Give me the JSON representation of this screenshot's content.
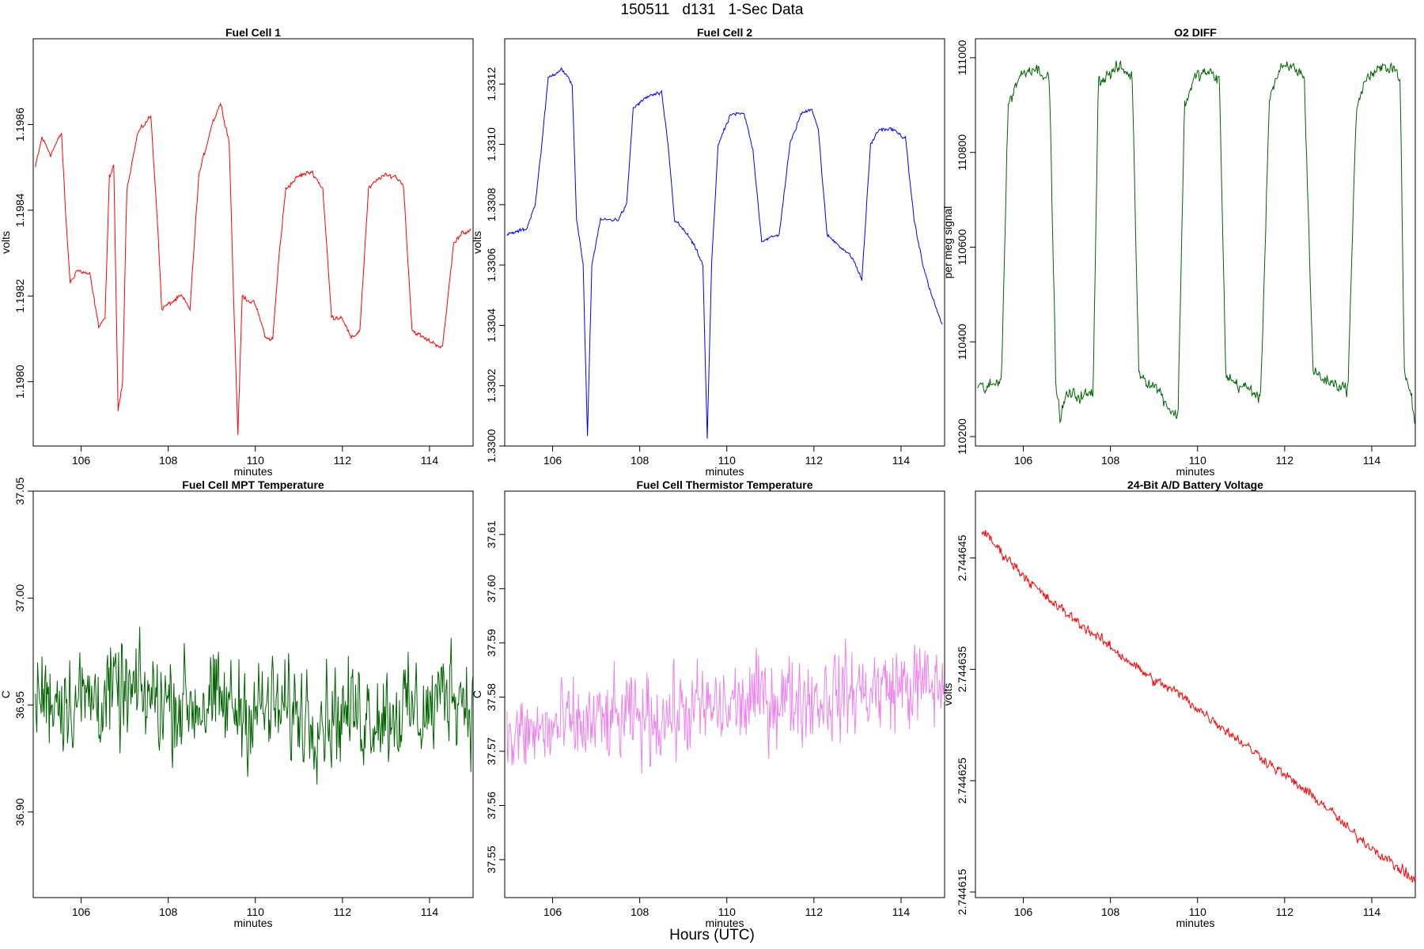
{
  "page": {
    "title": "150511   d131   1-Sec Data",
    "x_caption": "Hours (UTC)"
  },
  "chart_data": [
    {
      "type": "line",
      "title": "Fuel Cell 1",
      "xlabel": "minutes",
      "ylabel": "volts",
      "color": "#ff0000",
      "xlim": [
        104.9,
        115.0
      ],
      "ylim": [
        1.19785,
        1.1988
      ],
      "xticks": [
        106,
        108,
        110,
        112,
        114
      ],
      "yticks": [
        1.198,
        1.1982,
        1.1984,
        1.1986
      ],
      "ytick_labels": [
        "1.1980",
        "1.1982",
        "1.1984",
        "1.1986"
      ],
      "keypoints": [
        [
          104.95,
          1.1985
        ],
        [
          105.1,
          1.19857
        ],
        [
          105.3,
          1.19853
        ],
        [
          105.55,
          1.19858
        ],
        [
          105.65,
          1.19838
        ],
        [
          105.75,
          1.19823
        ],
        [
          105.9,
          1.19826
        ],
        [
          106.2,
          1.19825
        ],
        [
          106.4,
          1.19813
        ],
        [
          106.55,
          1.19815
        ],
        [
          106.65,
          1.19848
        ],
        [
          106.75,
          1.1985
        ],
        [
          106.85,
          1.19793
        ],
        [
          106.95,
          1.198
        ],
        [
          107.05,
          1.19845
        ],
        [
          107.3,
          1.19858
        ],
        [
          107.6,
          1.19862
        ],
        [
          107.75,
          1.19838
        ],
        [
          107.85,
          1.19817
        ],
        [
          108.0,
          1.19818
        ],
        [
          108.3,
          1.1982
        ],
        [
          108.5,
          1.19817
        ],
        [
          108.7,
          1.19848
        ],
        [
          109.0,
          1.1986
        ],
        [
          109.2,
          1.19865
        ],
        [
          109.4,
          1.19856
        ],
        [
          109.5,
          1.1982
        ],
        [
          109.6,
          1.19788
        ],
        [
          109.7,
          1.1982
        ],
        [
          110.0,
          1.19818
        ],
        [
          110.25,
          1.1981
        ],
        [
          110.4,
          1.1981
        ],
        [
          110.55,
          1.1983
        ],
        [
          110.7,
          1.19845
        ],
        [
          111.0,
          1.19848
        ],
        [
          111.3,
          1.19849
        ],
        [
          111.55,
          1.19845
        ],
        [
          111.75,
          1.19815
        ],
        [
          112.0,
          1.19815
        ],
        [
          112.2,
          1.1981
        ],
        [
          112.4,
          1.19812
        ],
        [
          112.6,
          1.19845
        ],
        [
          112.9,
          1.19848
        ],
        [
          113.2,
          1.19848
        ],
        [
          113.4,
          1.19846
        ],
        [
          113.6,
          1.19812
        ],
        [
          113.9,
          1.1981
        ],
        [
          114.3,
          1.19808
        ],
        [
          114.55,
          1.19832
        ],
        [
          114.75,
          1.19835
        ],
        [
          114.95,
          1.19835
        ]
      ],
      "noise": 6.5e-06
    },
    {
      "type": "line",
      "title": "Fuel Cell 2",
      "xlabel": "minutes",
      "ylabel": "volts",
      "color": "#0000ff",
      "xlim": [
        104.9,
        115.0
      ],
      "ylim": [
        1.33,
        1.33135
      ],
      "xticks": [
        106,
        108,
        110,
        112,
        114
      ],
      "yticks": [
        1.33,
        1.3302,
        1.3304,
        1.3306,
        1.3308,
        1.331,
        1.3312
      ],
      "ytick_labels": [
        "1.3300",
        "1.3302",
        "1.3304",
        "1.3306",
        "1.3308",
        "1.3310",
        "1.3312"
      ],
      "keypoints": [
        [
          104.95,
          1.3307
        ],
        [
          105.4,
          1.33072
        ],
        [
          105.6,
          1.3308
        ],
        [
          105.75,
          1.331
        ],
        [
          105.9,
          1.33122
        ],
        [
          106.2,
          1.33125
        ],
        [
          106.45,
          1.3312
        ],
        [
          106.55,
          1.33075
        ],
        [
          106.7,
          1.3306
        ],
        [
          106.8,
          1.33003
        ],
        [
          106.9,
          1.3306
        ],
        [
          107.1,
          1.33075
        ],
        [
          107.5,
          1.33075
        ],
        [
          107.7,
          1.3308
        ],
        [
          107.85,
          1.33112
        ],
        [
          108.2,
          1.33116
        ],
        [
          108.5,
          1.33117
        ],
        [
          108.65,
          1.331
        ],
        [
          108.8,
          1.33075
        ],
        [
          109.1,
          1.3307
        ],
        [
          109.3,
          1.33065
        ],
        [
          109.45,
          1.3306
        ],
        [
          109.55,
          1.33002
        ],
        [
          109.65,
          1.3306
        ],
        [
          109.8,
          1.331
        ],
        [
          110.1,
          1.3311
        ],
        [
          110.4,
          1.3311
        ],
        [
          110.6,
          1.33098
        ],
        [
          110.8,
          1.33068
        ],
        [
          111.2,
          1.3307
        ],
        [
          111.45,
          1.331
        ],
        [
          111.7,
          1.3311
        ],
        [
          111.95,
          1.33112
        ],
        [
          112.1,
          1.33105
        ],
        [
          112.3,
          1.3307
        ],
        [
          112.7,
          1.33065
        ],
        [
          112.9,
          1.33062
        ],
        [
          113.1,
          1.33055
        ],
        [
          113.3,
          1.331
        ],
        [
          113.5,
          1.33105
        ],
        [
          113.8,
          1.33105
        ],
        [
          114.1,
          1.33102
        ],
        [
          114.3,
          1.33075
        ],
        [
          114.5,
          1.3306
        ],
        [
          114.7,
          1.3305
        ],
        [
          114.95,
          1.3304
        ]
      ],
      "noise": 7.5e-06
    },
    {
      "type": "line",
      "title": "O2 DIFF",
      "xlabel": "minutes",
      "ylabel": "per meg signal",
      "color": "#006400",
      "xlim": [
        104.9,
        115.0
      ],
      "ylim": [
        110180,
        111040
      ],
      "xticks": [
        106,
        108,
        110,
        112,
        114
      ],
      "yticks": [
        110200,
        110400,
        110600,
        110800,
        111000
      ],
      "ytick_labels": [
        "110200",
        "110400",
        "110600",
        "110800",
        "111000"
      ],
      "keypoints": [
        [
          104.95,
          110310
        ],
        [
          105.1,
          110300
        ],
        [
          105.35,
          110310
        ],
        [
          105.5,
          110330
        ],
        [
          105.65,
          110900
        ],
        [
          105.9,
          110960
        ],
        [
          106.2,
          110980
        ],
        [
          106.45,
          110970
        ],
        [
          106.6,
          110950
        ],
        [
          106.75,
          110300
        ],
        [
          106.85,
          110240
        ],
        [
          107.0,
          110290
        ],
        [
          107.3,
          110285
        ],
        [
          107.6,
          110290
        ],
        [
          107.72,
          110950
        ],
        [
          107.9,
          110960
        ],
        [
          108.2,
          110980
        ],
        [
          108.5,
          110960
        ],
        [
          108.65,
          110340
        ],
        [
          108.8,
          110320
        ],
        [
          109.1,
          110300
        ],
        [
          109.35,
          110260
        ],
        [
          109.55,
          110240
        ],
        [
          109.7,
          110900
        ],
        [
          109.95,
          110960
        ],
        [
          110.2,
          110970
        ],
        [
          110.5,
          110955
        ],
        [
          110.65,
          110330
        ],
        [
          110.9,
          110310
        ],
        [
          111.2,
          110300
        ],
        [
          111.45,
          110280
        ],
        [
          111.65,
          110920
        ],
        [
          111.9,
          110975
        ],
        [
          112.2,
          110980
        ],
        [
          112.45,
          110960
        ],
        [
          112.65,
          110340
        ],
        [
          112.9,
          110320
        ],
        [
          113.2,
          110310
        ],
        [
          113.45,
          110300
        ],
        [
          113.65,
          110900
        ],
        [
          113.9,
          110960
        ],
        [
          114.2,
          110975
        ],
        [
          114.45,
          110985
        ],
        [
          114.65,
          110960
        ],
        [
          114.75,
          110330
        ],
        [
          114.9,
          110290
        ],
        [
          115.0,
          110220
        ]
      ],
      "noise": 16
    },
    {
      "type": "line",
      "title": "Fuel Cell MPT Temperature",
      "xlabel": "minutes",
      "ylabel": "C",
      "color": "#006400",
      "xlim": [
        104.9,
        115.0
      ],
      "ylim": [
        36.86,
        37.05
      ],
      "xticks": [
        106,
        108,
        110,
        112,
        114
      ],
      "yticks": [
        36.9,
        36.95,
        37.0,
        37.05
      ],
      "ytick_labels": [
        "36.90",
        "36.95",
        "37.00",
        "37.05"
      ],
      "keypoints": [
        [
          104.95,
          36.955
        ],
        [
          106,
          36.953
        ],
        [
          107,
          36.955
        ],
        [
          108,
          36.952
        ],
        [
          109,
          36.95
        ],
        [
          110,
          36.948
        ],
        [
          111,
          36.947
        ],
        [
          112,
          36.946
        ],
        [
          113,
          36.947
        ],
        [
          114,
          36.947
        ],
        [
          114.5,
          36.96
        ],
        [
          115.0,
          36.95
        ]
      ],
      "noise": 0.028
    },
    {
      "type": "line",
      "title": "Fuel Cell Thermistor Temperature",
      "xlabel": "minutes",
      "ylabel": "C",
      "color": "#ee82ee",
      "xlim": [
        104.9,
        115.0
      ],
      "ylim": [
        37.543,
        37.618
      ],
      "xticks": [
        106,
        108,
        110,
        112,
        114
      ],
      "yticks": [
        37.55,
        37.56,
        37.57,
        37.58,
        37.59,
        37.6,
        37.61
      ],
      "ytick_labels": [
        "37.55",
        "37.56",
        "37.57",
        "37.58",
        "37.59",
        "37.60",
        "37.61"
      ],
      "keypoints": [
        [
          104.95,
          37.572
        ],
        [
          106,
          37.574
        ],
        [
          107,
          37.575
        ],
        [
          108,
          37.576
        ],
        [
          109,
          37.577
        ],
        [
          110,
          37.578
        ],
        [
          111,
          37.58
        ],
        [
          112,
          37.58
        ],
        [
          113,
          37.581
        ],
        [
          114,
          37.582
        ],
        [
          115.0,
          37.582
        ]
      ],
      "noise": 0.0095
    },
    {
      "type": "line",
      "title": "24-Bit A/D Battery Voltage",
      "xlabel": "minutes",
      "ylabel": "volts",
      "color": "#ff0000",
      "xlim": [
        104.9,
        115.0
      ],
      "ylim": [
        2.7446145,
        2.744651
      ],
      "xticks": [
        106,
        108,
        110,
        112,
        114
      ],
      "yticks": [
        2.744615,
        2.744625,
        2.744635,
        2.744645
      ],
      "ytick_labels": [
        "2.744615",
        "2.744625",
        "2.744635",
        "2.744645"
      ],
      "keypoints": [
        [
          105.05,
          2.7446475
        ],
        [
          105.5,
          2.7446455
        ],
        [
          106,
          2.7446435
        ],
        [
          106.5,
          2.7446415
        ],
        [
          107,
          2.74464
        ],
        [
          107.5,
          2.7446385
        ],
        [
          108,
          2.744637
        ],
        [
          108.5,
          2.7446355
        ],
        [
          109,
          2.744634
        ],
        [
          109.5,
          2.744633
        ],
        [
          110,
          2.7446315
        ],
        [
          110.5,
          2.74463
        ],
        [
          111,
          2.7446285
        ],
        [
          111.5,
          2.744627
        ],
        [
          112,
          2.7446255
        ],
        [
          112.5,
          2.744624
        ],
        [
          113,
          2.7446225
        ],
        [
          113.5,
          2.7446205
        ],
        [
          114,
          2.744619
        ],
        [
          114.5,
          2.7446175
        ],
        [
          115.0,
          2.744616
        ]
      ],
      "noise": 5.5e-07
    }
  ]
}
